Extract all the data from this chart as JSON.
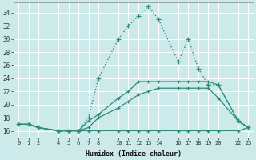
{
  "xlabel": "Humidex (Indice chaleur)",
  "bg_color": "#cceaea",
  "grid_color": "#ffffff",
  "line_color": "#2e8b7a",
  "xticks": [
    0,
    1,
    2,
    4,
    5,
    6,
    7,
    8,
    10,
    11,
    12,
    13,
    14,
    16,
    17,
    18,
    19,
    20,
    22,
    23
  ],
  "yticks": [
    16,
    18,
    20,
    22,
    24,
    26,
    28,
    30,
    32,
    34
  ],
  "xlim": [
    -0.5,
    23.5
  ],
  "ylim": [
    15.0,
    35.5
  ],
  "series": [
    {
      "x": [
        0,
        1,
        2,
        4,
        5,
        6,
        7,
        8,
        10,
        11,
        12,
        13,
        14,
        16,
        17,
        18,
        19,
        20,
        22,
        23
      ],
      "y": [
        17.0,
        17.0,
        16.5,
        16.0,
        16.0,
        16.0,
        16.0,
        16.0,
        16.0,
        16.0,
        16.0,
        16.0,
        16.0,
        16.0,
        16.0,
        16.0,
        16.0,
        16.0,
        16.0,
        16.5
      ],
      "marker": "+",
      "linestyle": "-",
      "linewidth": 0.9,
      "markersize": 3.5
    },
    {
      "x": [
        0,
        1,
        2,
        4,
        5,
        6,
        7,
        8,
        10,
        11,
        12,
        13,
        14,
        16,
        17,
        18,
        19,
        20,
        22,
        23
      ],
      "y": [
        17.0,
        17.0,
        16.5,
        16.0,
        16.0,
        16.0,
        16.5,
        18.0,
        19.5,
        20.5,
        21.5,
        22.0,
        22.5,
        22.5,
        22.5,
        22.5,
        22.5,
        21.0,
        17.5,
        16.5
      ],
      "marker": "+",
      "linestyle": "-",
      "linewidth": 0.9,
      "markersize": 3.5
    },
    {
      "x": [
        0,
        1,
        2,
        4,
        5,
        6,
        7,
        8,
        10,
        11,
        12,
        13,
        14,
        16,
        17,
        18,
        19,
        20,
        22,
        23
      ],
      "y": [
        17.0,
        17.0,
        16.5,
        16.0,
        16.0,
        16.0,
        17.5,
        18.5,
        21.0,
        22.0,
        23.5,
        23.5,
        23.5,
        23.5,
        23.5,
        23.5,
        23.5,
        23.0,
        17.5,
        16.5
      ],
      "marker": "+",
      "linestyle": "-",
      "linewidth": 0.9,
      "markersize": 3.5
    },
    {
      "x": [
        0,
        1,
        2,
        4,
        5,
        6,
        7,
        8,
        10,
        11,
        12,
        13,
        14,
        16,
        17,
        18,
        19,
        20,
        22,
        23
      ],
      "y": [
        17.0,
        17.0,
        16.5,
        16.0,
        16.0,
        16.0,
        18.0,
        24.0,
        30.0,
        32.0,
        33.5,
        35.0,
        33.0,
        26.5,
        30.0,
        25.5,
        23.0,
        23.0,
        17.5,
        16.5
      ],
      "marker": "+",
      "linestyle": ":",
      "linewidth": 1.0,
      "markersize": 4.0
    }
  ]
}
